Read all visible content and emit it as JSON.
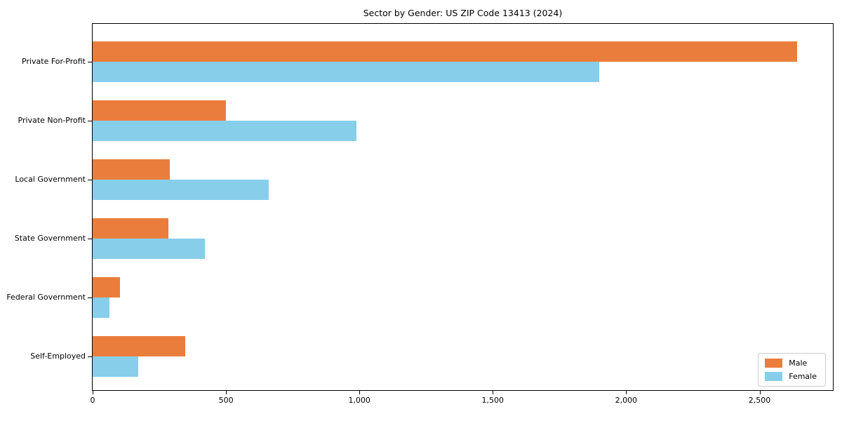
{
  "chart_data": {
    "type": "bar",
    "orientation": "horizontal",
    "title": "Sector by Gender: US ZIP Code 13413 (2024)",
    "categories": [
      "Private For-Profit",
      "Private Non-Profit",
      "Local Government",
      "State Government",
      "Federal Government",
      "Self-Employed"
    ],
    "series": [
      {
        "name": "Male",
        "color": "#EB7D3C",
        "values": [
          2640,
          500,
          290,
          285,
          103,
          347
        ]
      },
      {
        "name": "Female",
        "color": "#87CEEB",
        "values": [
          1900,
          990,
          660,
          420,
          63,
          171
        ]
      }
    ],
    "xlabel": "",
    "ylabel": "",
    "xlim": [
      0,
      2775
    ],
    "x_ticks": [
      0,
      500,
      1000,
      1500,
      2000,
      2500
    ],
    "x_tick_labels": [
      "0",
      "500",
      "1,000",
      "1,500",
      "2,000",
      "2,500"
    ],
    "grid": false,
    "legend": {
      "position": "lower right",
      "entries": [
        "Male",
        "Female"
      ]
    },
    "colors": {
      "background": "#ffffff",
      "spine": "#000000",
      "legend_border": "#cccccc"
    }
  }
}
